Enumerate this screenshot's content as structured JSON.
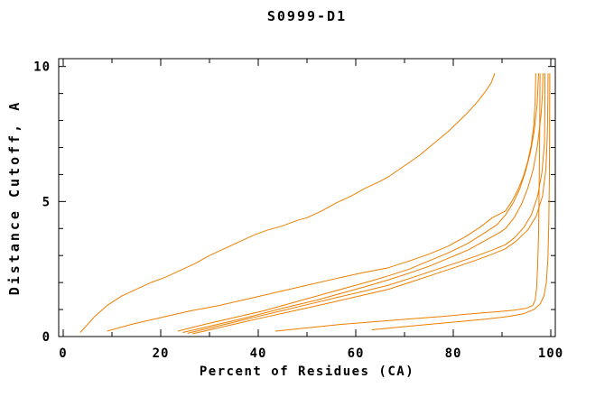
{
  "chart_data": {
    "type": "line",
    "title": "S0999-D1",
    "xlabel": "Percent of Residues (CA)",
    "ylabel": "Distance Cutoff, A",
    "xlim": [
      0,
      100
    ],
    "ylim": [
      0,
      10
    ],
    "x_major_ticks": [
      0,
      20,
      40,
      60,
      80,
      100
    ],
    "x_minor_ticks": [
      10,
      30,
      50,
      70,
      90
    ],
    "y_major_ticks": [
      0,
      5,
      10
    ],
    "y_minor_ticks": [
      1,
      2,
      3,
      4,
      6,
      7,
      8,
      9
    ],
    "grid": false,
    "legend": "none",
    "colors": {
      "curve": "#ED7F00",
      "axis": "#000000",
      "background": "#FFFFFF"
    },
    "series": [
      {
        "name": "curve-1",
        "points": [
          [
            3.5,
            0.15
          ],
          [
            6.5,
            0.75
          ],
          [
            9,
            1.15
          ],
          [
            12,
            1.5
          ],
          [
            15,
            1.75
          ],
          [
            18,
            2.0
          ],
          [
            21,
            2.2
          ],
          [
            24,
            2.45
          ],
          [
            27,
            2.7
          ],
          [
            30,
            3.0
          ],
          [
            33,
            3.25
          ],
          [
            36,
            3.5
          ],
          [
            39,
            3.75
          ],
          [
            42,
            3.95
          ],
          [
            45,
            4.1
          ],
          [
            48,
            4.3
          ],
          [
            50,
            4.4
          ],
          [
            53,
            4.65
          ],
          [
            56,
            4.95
          ],
          [
            59,
            5.2
          ],
          [
            62,
            5.5
          ],
          [
            65,
            5.75
          ],
          [
            67,
            5.95
          ],
          [
            69,
            6.2
          ],
          [
            71,
            6.45
          ],
          [
            73,
            6.7
          ],
          [
            75,
            7.0
          ],
          [
            77,
            7.3
          ],
          [
            79,
            7.6
          ],
          [
            81,
            7.95
          ],
          [
            83,
            8.3
          ],
          [
            85,
            8.7
          ],
          [
            86.5,
            9.05
          ],
          [
            87.8,
            9.4
          ],
          [
            88.5,
            9.75
          ]
        ]
      },
      {
        "name": "curve-2",
        "points": [
          [
            9,
            0.2
          ],
          [
            14,
            0.45
          ],
          [
            20,
            0.7
          ],
          [
            26,
            0.95
          ],
          [
            32,
            1.15
          ],
          [
            38,
            1.4
          ],
          [
            44,
            1.65
          ],
          [
            50,
            1.9
          ],
          [
            56,
            2.15
          ],
          [
            61,
            2.35
          ],
          [
            66.7,
            2.55
          ],
          [
            71,
            2.8
          ],
          [
            75,
            3.05
          ],
          [
            79,
            3.35
          ],
          [
            82.5,
            3.7
          ],
          [
            85.5,
            4.05
          ],
          [
            88,
            4.4
          ],
          [
            90.7,
            4.65
          ],
          [
            92,
            5.0
          ],
          [
            93.3,
            5.45
          ],
          [
            94.4,
            5.95
          ],
          [
            95.3,
            6.5
          ],
          [
            96,
            7.1
          ],
          [
            96.5,
            7.8
          ],
          [
            96.8,
            8.7
          ],
          [
            96.9,
            9.75
          ]
        ]
      },
      {
        "name": "curve-3",
        "points": [
          [
            23.5,
            0.2
          ],
          [
            29,
            0.45
          ],
          [
            35,
            0.7
          ],
          [
            41,
            0.95
          ],
          [
            47,
            1.25
          ],
          [
            53,
            1.55
          ],
          [
            58,
            1.8
          ],
          [
            63,
            2.05
          ],
          [
            66.7,
            2.25
          ],
          [
            71,
            2.5
          ],
          [
            75,
            2.8
          ],
          [
            79,
            3.1
          ],
          [
            83,
            3.45
          ],
          [
            86.5,
            3.85
          ],
          [
            89,
            4.15
          ],
          [
            90.7,
            4.5
          ],
          [
            92.3,
            4.95
          ],
          [
            93.7,
            5.5
          ],
          [
            94.8,
            6.1
          ],
          [
            95.8,
            6.8
          ],
          [
            96.6,
            7.6
          ],
          [
            97.2,
            8.6
          ],
          [
            97.5,
            9.75
          ]
        ]
      },
      {
        "name": "curve-4",
        "points": [
          [
            24.5,
            0.15
          ],
          [
            31,
            0.42
          ],
          [
            38,
            0.72
          ],
          [
            45,
            1.05
          ],
          [
            52,
            1.35
          ],
          [
            58,
            1.65
          ],
          [
            63,
            1.9
          ],
          [
            66.7,
            2.1
          ],
          [
            71,
            2.35
          ],
          [
            75,
            2.6
          ],
          [
            79,
            2.9
          ],
          [
            83,
            3.2
          ],
          [
            86.5,
            3.55
          ],
          [
            89.5,
            3.85
          ],
          [
            90.7,
            4.0
          ],
          [
            92.5,
            4.4
          ],
          [
            94,
            4.9
          ],
          [
            95.3,
            5.5
          ],
          [
            96.4,
            6.2
          ],
          [
            97.3,
            7.1
          ],
          [
            98,
            8.2
          ],
          [
            98.3,
            9.0
          ],
          [
            98.4,
            9.75
          ]
        ]
      },
      {
        "name": "curve-5",
        "points": [
          [
            25.5,
            0.12
          ],
          [
            32,
            0.4
          ],
          [
            38,
            0.66
          ],
          [
            44,
            0.92
          ],
          [
            50,
            1.18
          ],
          [
            56,
            1.44
          ],
          [
            61,
            1.65
          ],
          [
            66.7,
            1.9
          ],
          [
            71,
            2.15
          ],
          [
            76,
            2.45
          ],
          [
            81,
            2.75
          ],
          [
            85,
            3.0
          ],
          [
            88,
            3.2
          ],
          [
            90.7,
            3.4
          ],
          [
            92.5,
            3.65
          ],
          [
            94.5,
            4.05
          ],
          [
            96,
            4.5
          ],
          [
            97.3,
            5.2
          ],
          [
            98.2,
            6.1
          ],
          [
            98.7,
            7.2
          ],
          [
            98.8,
            8.5
          ],
          [
            98.8,
            9.75
          ]
        ]
      },
      {
        "name": "curve-6",
        "points": [
          [
            26.5,
            0.1
          ],
          [
            33,
            0.37
          ],
          [
            40,
            0.66
          ],
          [
            47,
            0.94
          ],
          [
            54,
            1.22
          ],
          [
            60,
            1.47
          ],
          [
            66.7,
            1.75
          ],
          [
            71,
            2.0
          ],
          [
            76,
            2.3
          ],
          [
            81,
            2.6
          ],
          [
            85,
            2.85
          ],
          [
            88,
            3.05
          ],
          [
            90.7,
            3.25
          ],
          [
            93,
            3.55
          ],
          [
            95.3,
            3.95
          ],
          [
            97,
            4.45
          ],
          [
            98.3,
            5.2
          ],
          [
            99,
            6.2
          ],
          [
            99.3,
            7.5
          ],
          [
            99.4,
            8.8
          ],
          [
            99.45,
            9.75
          ]
        ]
      },
      {
        "name": "curve-7",
        "points": [
          [
            43.5,
            0.2
          ],
          [
            50,
            0.32
          ],
          [
            57,
            0.45
          ],
          [
            64,
            0.55
          ],
          [
            71,
            0.65
          ],
          [
            78,
            0.75
          ],
          [
            84,
            0.85
          ],
          [
            89,
            0.92
          ],
          [
            92.5,
            0.98
          ],
          [
            95,
            1.05
          ],
          [
            96.3,
            1.15
          ],
          [
            96.8,
            1.35
          ],
          [
            97.1,
            1.8
          ],
          [
            97.3,
            2.6
          ],
          [
            97.5,
            3.8
          ],
          [
            97.6,
            5.2
          ],
          [
            97.7,
            7.0
          ],
          [
            97.75,
            8.5
          ],
          [
            97.8,
            9.75
          ]
        ]
      },
      {
        "name": "curve-8",
        "points": [
          [
            63.3,
            0.25
          ],
          [
            69,
            0.35
          ],
          [
            75,
            0.45
          ],
          [
            81,
            0.55
          ],
          [
            87,
            0.65
          ],
          [
            91.5,
            0.75
          ],
          [
            94.5,
            0.85
          ],
          [
            96.5,
            1.0
          ],
          [
            97.8,
            1.2
          ],
          [
            98.6,
            1.5
          ],
          [
            99.1,
            2.0
          ],
          [
            99.4,
            2.9
          ],
          [
            99.6,
            4.2
          ],
          [
            99.7,
            5.8
          ],
          [
            99.75,
            7.5
          ],
          [
            99.8,
            9.75
          ]
        ]
      }
    ]
  }
}
